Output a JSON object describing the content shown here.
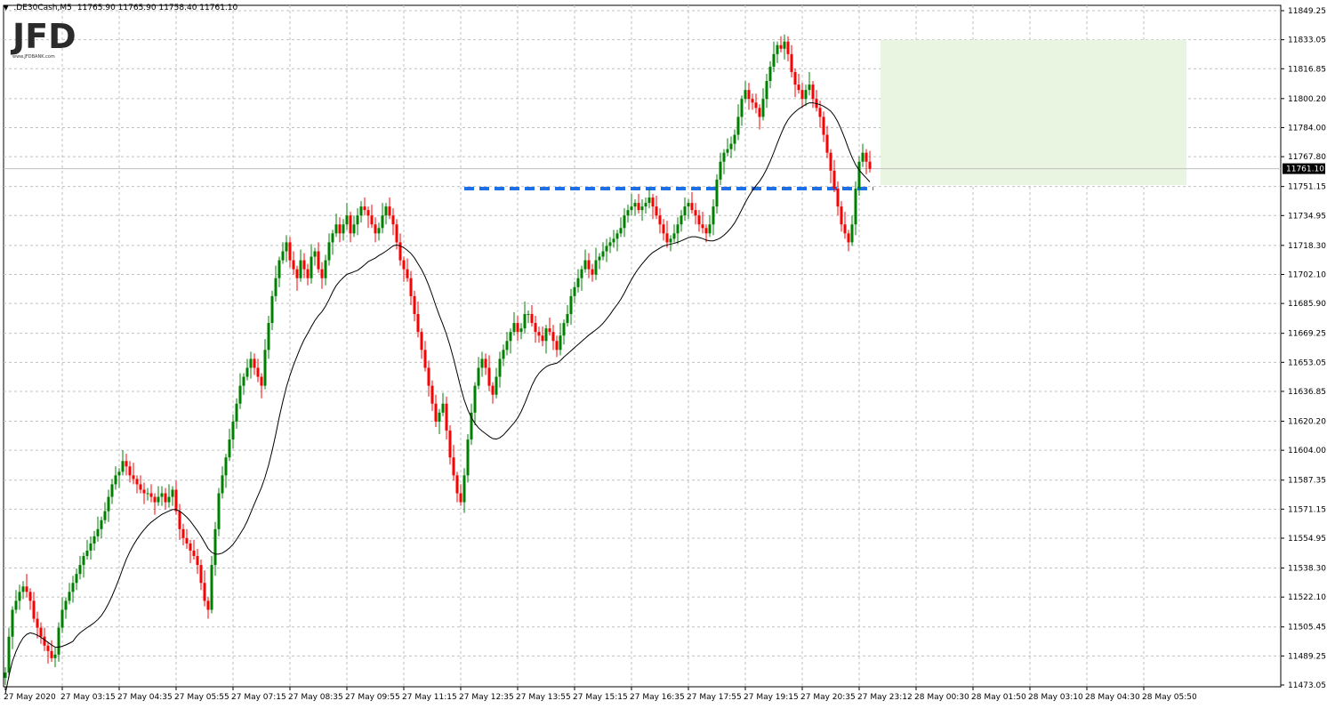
{
  "header": {
    "symbol": ".DE30Cash,M5",
    "ohlc": "11765.90 11765.90 11758.40 11761.10"
  },
  "logo": {
    "text": "JFD",
    "subtext": "www.JFDBANK.com"
  },
  "colors": {
    "up": "#008000",
    "down": "#ff0000",
    "grid": "#c0c0c0",
    "ma": "#000000",
    "resistance": "#1e6fe8",
    "zone": "#e9f5e0",
    "price_line": "#c0c0c0"
  },
  "chart_data": {
    "type": "candlestick",
    "symbol": ".DE30Cash",
    "timeframe": "M5",
    "current_price": "11761.10",
    "ylim": [
      11473.05,
      11849.25
    ],
    "y_ticks": [
      "11849.25",
      "11833.05",
      "11816.85",
      "11800.20",
      "11784.00",
      "11767.80",
      "11751.15",
      "11734.95",
      "11718.30",
      "11702.10",
      "11685.90",
      "11669.25",
      "11653.05",
      "11636.85",
      "11620.20",
      "11604.00",
      "11587.35",
      "11571.15",
      "11554.95",
      "11538.30",
      "11522.10",
      "11505.45",
      "11489.25",
      "11473.05"
    ],
    "x_ticks": [
      "27 May 2020",
      "27 May 03:15",
      "27 May 04:35",
      "27 May 05:55",
      "27 May 07:15",
      "27 May 08:35",
      "27 May 09:55",
      "27 May 11:15",
      "27 May 12:35",
      "27 May 13:55",
      "27 May 15:15",
      "27 May 16:35",
      "27 May 17:55",
      "27 May 19:15",
      "27 May 20:35",
      "27 May 23:12",
      "28 May 00:30",
      "28 May 01:50",
      "28 May 03:10",
      "28 May 04:30",
      "28 May 05:50"
    ],
    "bars_per_tick": 16,
    "resistance_level": 11750,
    "resistance_span": [
      "27 May 12:15",
      "27 May 23:00"
    ],
    "zone": {
      "from": "27 May 23:00",
      "to": "28 May 05:50",
      "low": 11752,
      "high": 11833
    },
    "moving_average": "black line",
    "close_series": [
      11480,
      11500,
      11515,
      11520,
      11525,
      11528,
      11525,
      11520,
      11510,
      11505,
      11500,
      11495,
      11492,
      11488,
      11490,
      11505,
      11515,
      11520,
      11525,
      11530,
      11535,
      11540,
      11545,
      11548,
      11552,
      11556,
      11560,
      11565,
      11570,
      11578,
      11585,
      11590,
      11592,
      11598,
      11595,
      11590,
      11588,
      11585,
      11582,
      11580,
      11580,
      11578,
      11575,
      11578,
      11580,
      11575,
      11578,
      11582,
      11570,
      11560,
      11555,
      11552,
      11548,
      11545,
      11540,
      11530,
      11520,
      11515,
      11540,
      11560,
      11580,
      11590,
      11600,
      11610,
      11620,
      11630,
      11640,
      11645,
      11650,
      11655,
      11650,
      11645,
      11640,
      11660,
      11675,
      11690,
      11700,
      11710,
      11715,
      11720,
      11710,
      11705,
      11700,
      11710,
      11705,
      11700,
      11712,
      11715,
      11705,
      11700,
      11710,
      11720,
      11725,
      11730,
      11725,
      11730,
      11735,
      11725,
      11730,
      11735,
      11740,
      11738,
      11735,
      11730,
      11725,
      11728,
      11735,
      11740,
      11735,
      11730,
      11720,
      11710,
      11705,
      11700,
      11690,
      11680,
      11670,
      11660,
      11650,
      11640,
      11630,
      11620,
      11625,
      11630,
      11615,
      11600,
      11590,
      11580,
      11575,
      11590,
      11610,
      11625,
      11640,
      11650,
      11655,
      11650,
      11640,
      11635,
      11645,
      11655,
      11660,
      11665,
      11670,
      11675,
      11670,
      11672,
      11680,
      11680,
      11675,
      11670,
      11668,
      11665,
      11672,
      11670,
      11665,
      11660,
      11668,
      11675,
      11680,
      11690,
      11695,
      11700,
      11705,
      11710,
      11705,
      11702,
      11710,
      11712,
      11715,
      11718,
      11720,
      11722,
      11725,
      11728,
      11735,
      11738,
      11740,
      11742,
      11738,
      11740,
      11742,
      11745,
      11740,
      11735,
      11730,
      11725,
      11720,
      11722,
      11725,
      11730,
      11735,
      11740,
      11742,
      11738,
      11735,
      11730,
      11728,
      11725,
      11730,
      11740,
      11755,
      11765,
      11770,
      11772,
      11775,
      11780,
      11790,
      11800,
      11805,
      11800,
      11798,
      11795,
      11790,
      11800,
      11810,
      11818,
      11825,
      11830,
      11828,
      11832,
      11825,
      11815,
      11808,
      11805,
      11800,
      11805,
      11808,
      11800,
      11795,
      11790,
      11780,
      11770,
      11760,
      11750,
      11740,
      11730,
      11725,
      11720,
      11730,
      11750,
      11765,
      11770,
      11765,
      11761
    ]
  }
}
